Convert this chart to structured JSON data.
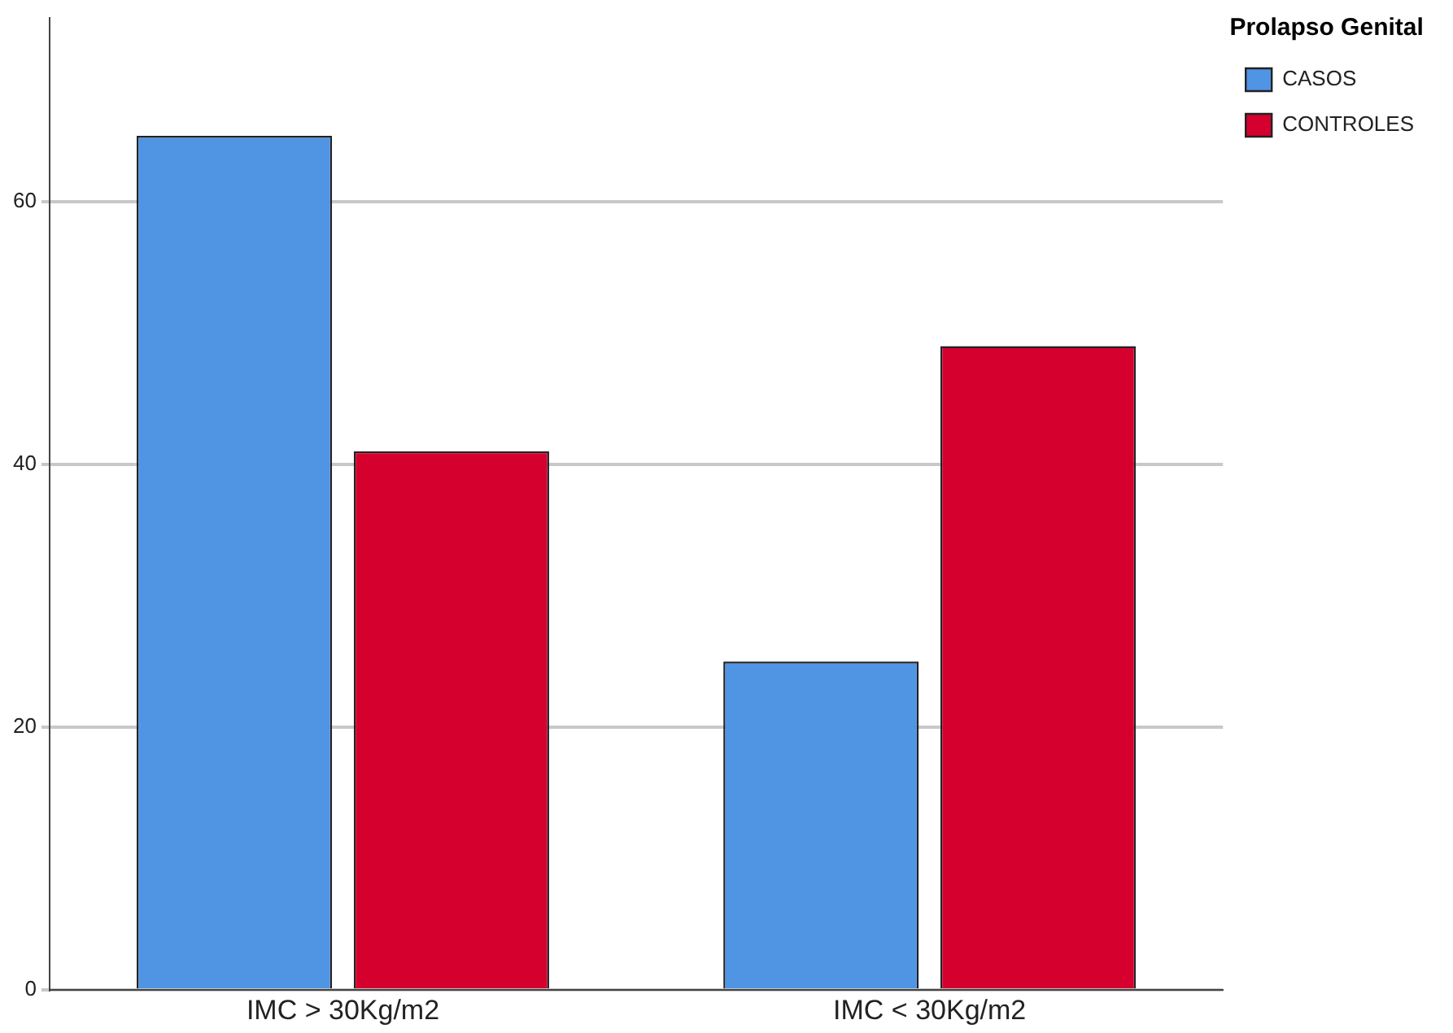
{
  "chart_data": {
    "type": "bar",
    "legend_title": "Prolapso Genital",
    "categories": [
      "IMC > 30Kg/m2",
      "IMC < 30Kg/m2"
    ],
    "series": [
      {
        "name": "CASOS",
        "color": "#5094e4",
        "values": [
          65,
          25
        ]
      },
      {
        "name": "CONTROLES",
        "color": "#d6002f",
        "values": [
          41,
          49
        ]
      }
    ],
    "ylim": [
      0,
      74
    ],
    "yticks": [
      0,
      20,
      40,
      60
    ],
    "grid": "y",
    "legend": "top right"
  }
}
